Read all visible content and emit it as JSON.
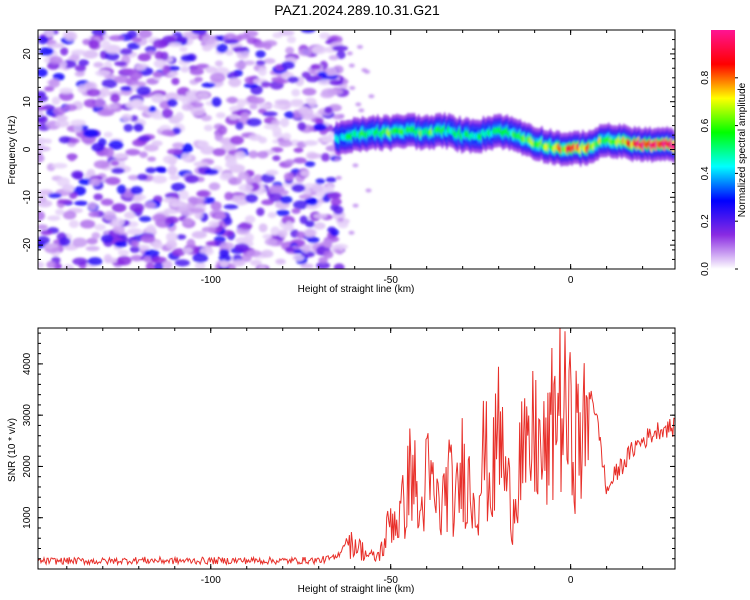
{
  "chart_data": [
    {
      "type": "heatmap",
      "title": "PAZ1.2024.289.10.31.G21",
      "xlabel": "Height of straight line (km)",
      "ylabel": "Frequency (Hz)",
      "xlim": [
        -148,
        29
      ],
      "ylim": [
        -25,
        25
      ],
      "x_ticks": [
        -100,
        -50,
        0
      ],
      "y_ticks": [
        -20,
        -10,
        0,
        10,
        20
      ],
      "colorbar": {
        "label": "Normalized spectral amplitude",
        "range": [
          0,
          1
        ],
        "ticks": [
          "0.0",
          "0.2",
          "0.4",
          "0.6",
          "0.8"
        ],
        "colormap": "hsv-rainbow",
        "colors": [
          "#ffffff",
          "#8a2be2",
          "#0000ff",
          "#00ffff",
          "#00ff00",
          "#ffff00",
          "#ff0000",
          "#ff1493"
        ]
      },
      "noise_region": {
        "x_range": [
          -148,
          -65
        ],
        "freq_range": [
          -25,
          25
        ],
        "max_amplitude": 0.25
      },
      "signal_ridge": [
        {
          "x": -65,
          "f": 2.0,
          "a": 0.45
        },
        {
          "x": -60,
          "f": 3.0,
          "a": 0.5
        },
        {
          "x": -55,
          "f": 3.5,
          "a": 0.55
        },
        {
          "x": -50,
          "f": 3.5,
          "a": 0.6
        },
        {
          "x": -45,
          "f": 4.0,
          "a": 0.55
        },
        {
          "x": -40,
          "f": 3.5,
          "a": 0.6
        },
        {
          "x": -35,
          "f": 4.0,
          "a": 0.55
        },
        {
          "x": -30,
          "f": 3.0,
          "a": 0.5
        },
        {
          "x": -25,
          "f": 3.0,
          "a": 0.5
        },
        {
          "x": -20,
          "f": 4.0,
          "a": 0.5
        },
        {
          "x": -15,
          "f": 3.0,
          "a": 0.55
        },
        {
          "x": -10,
          "f": 1.5,
          "a": 0.6
        },
        {
          "x": -5,
          "f": 0.5,
          "a": 0.65
        },
        {
          "x": 0,
          "f": 0.0,
          "a": 0.85
        },
        {
          "x": 5,
          "f": 0.5,
          "a": 0.75
        },
        {
          "x": 10,
          "f": 2.0,
          "a": 0.6
        },
        {
          "x": 15,
          "f": 1.5,
          "a": 0.8
        },
        {
          "x": 20,
          "f": 1.0,
          "a": 0.95
        },
        {
          "x": 25,
          "f": 1.0,
          "a": 0.95
        },
        {
          "x": 29,
          "f": 1.0,
          "a": 0.95
        }
      ]
    },
    {
      "type": "line",
      "xlabel": "Height of straight line (km)",
      "ylabel": "SNR (10 * v/v)",
      "xlim": [
        -148,
        29
      ],
      "ylim": [
        0,
        4700
      ],
      "x_ticks": [
        -100,
        -50,
        0
      ],
      "y_ticks": [
        1000,
        2000,
        3000,
        4000
      ],
      "line_color": "#e8302a",
      "series": [
        {
          "x": [
            -148,
            -140,
            -130,
            -120,
            -110,
            -100,
            -90,
            -80,
            -70,
            -65,
            -62,
            -60,
            -58,
            -56,
            -54,
            -52,
            -50,
            -48,
            -46,
            -44,
            -42,
            -40,
            -38,
            -36,
            -34,
            -32,
            -30,
            -28,
            -26,
            -24,
            -22,
            -20,
            -18,
            -16,
            -14,
            -12,
            -10,
            -8,
            -6,
            -4,
            -2,
            0,
            2,
            4,
            6,
            8,
            10,
            12,
            14,
            16,
            18,
            20,
            22,
            24,
            26,
            29
          ],
          "y": [
            150,
            160,
            150,
            170,
            160,
            160,
            165,
            160,
            170,
            220,
            600,
            700,
            500,
            350,
            300,
            600,
            1400,
            1300,
            1800,
            2900,
            1200,
            2500,
            2000,
            1500,
            2500,
            1600,
            2800,
            2200,
            1800,
            3200,
            2100,
            3900,
            2400,
            1500,
            3300,
            2700,
            3700,
            2900,
            3200,
            4600,
            4200,
            3700,
            3500,
            3600,
            3400,
            2600,
            1500,
            1800,
            2000,
            2200,
            2400,
            2500,
            2600,
            2700,
            2750,
            2750
          ]
        }
      ]
    }
  ]
}
